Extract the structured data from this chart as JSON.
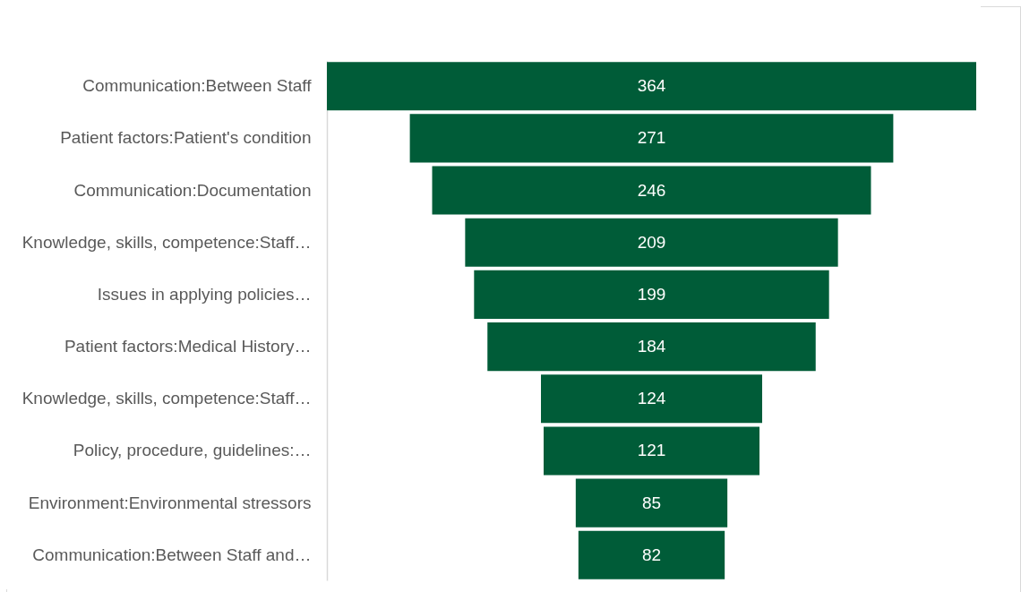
{
  "chart_data": {
    "type": "other",
    "categories": [
      "Communication:Between Staff",
      "Patient factors:Patient's condition",
      "Communication:Documentation",
      "Knowledge, skills, competence:Staff…",
      "Issues in applying policies…",
      "Patient factors:Medical History…",
      "Knowledge, skills, competence:Staff…",
      "Policy, procedure, guidelines:…",
      "Environment:Environmental stressors",
      "Communication:Between Staff and…"
    ],
    "values": [
      364,
      271,
      246,
      209,
      199,
      184,
      124,
      121,
      85,
      82
    ],
    "color": "#005c38",
    "data_labels": true
  }
}
